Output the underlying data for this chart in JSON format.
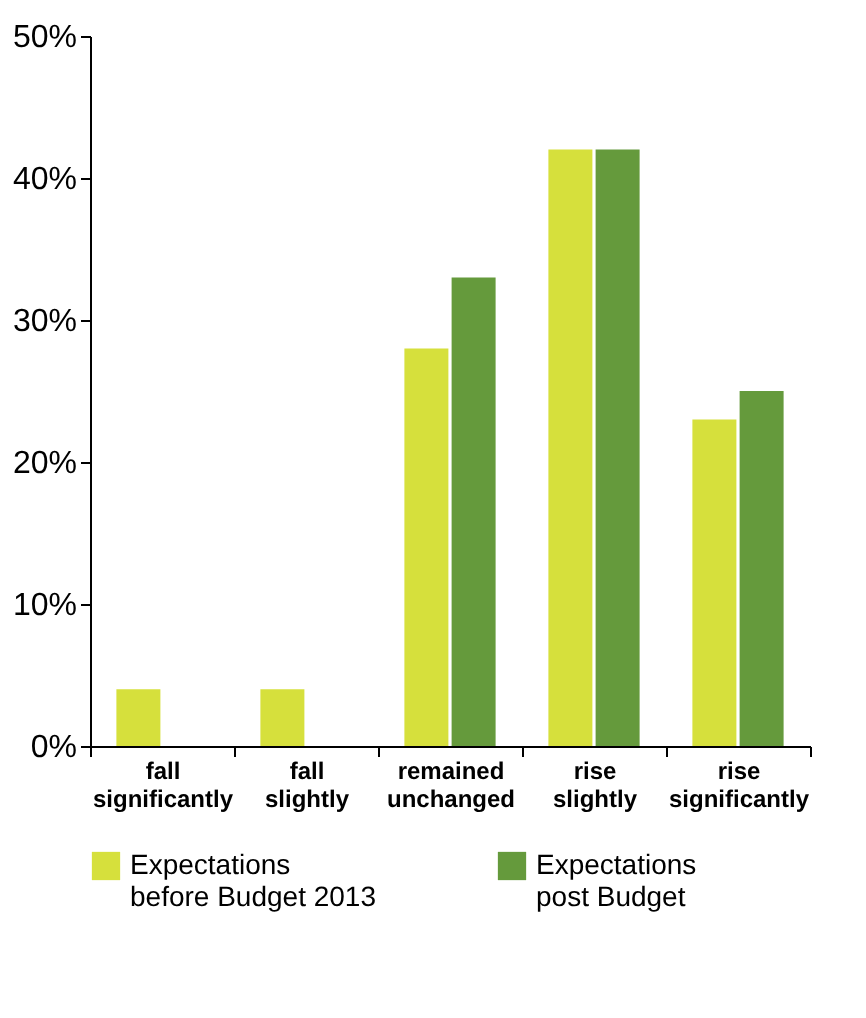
{
  "chart_data": {
    "type": "bar",
    "categories": [
      "fall significantly",
      "fall slightly",
      "remained unchanged",
      "rise slightly",
      "rise significantly"
    ],
    "series": [
      {
        "name": "Expectations before Budget 2013",
        "color": "#d6e03c",
        "values": [
          4,
          4,
          28,
          42,
          23
        ]
      },
      {
        "name": "Expectations post Budget",
        "color": "#659a3c",
        "values": [
          0,
          0,
          33,
          42,
          25
        ]
      }
    ],
    "ylim": [
      0,
      50
    ],
    "yticks": [
      {
        "value": 0,
        "label": "0%"
      },
      {
        "value": 10,
        "label": "10%"
      },
      {
        "value": 20,
        "label": "20%"
      },
      {
        "value": 30,
        "label": "30%"
      },
      {
        "value": 40,
        "label": "40%"
      },
      {
        "value": 50,
        "label": "50%"
      }
    ],
    "grid": false,
    "legend": "bottom"
  }
}
